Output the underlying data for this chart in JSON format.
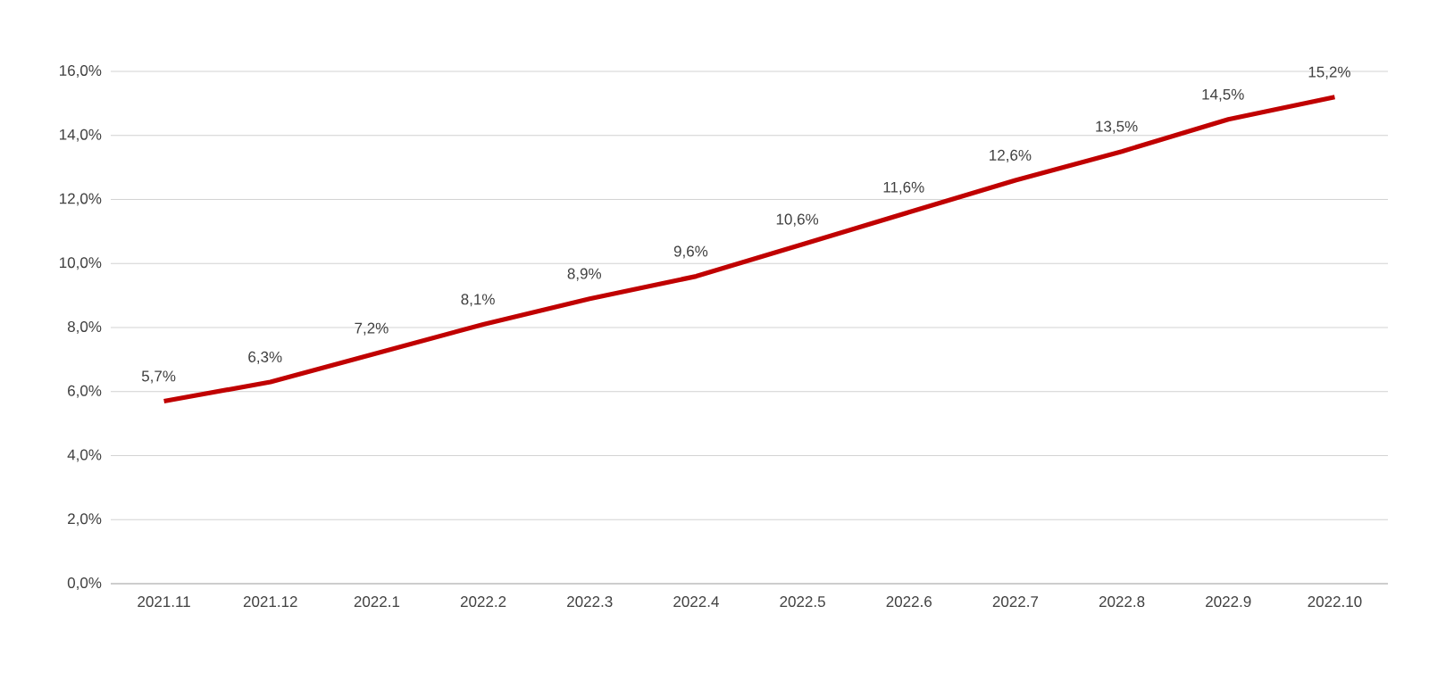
{
  "chart_data": {
    "type": "line",
    "categories": [
      "2021.11",
      "2021.12",
      "2022.1",
      "2022.2",
      "2022.3",
      "2022.4",
      "2022.5",
      "2022.6",
      "2022.7",
      "2022.8",
      "2022.9",
      "2022.10"
    ],
    "values": [
      5.7,
      6.3,
      7.2,
      8.1,
      8.9,
      9.6,
      10.6,
      11.6,
      12.6,
      13.5,
      14.5,
      15.2
    ],
    "value_labels": [
      "5,7%",
      "6,3%",
      "7,2%",
      "8,1%",
      "8,9%",
      "9,6%",
      "10,6%",
      "11,6%",
      "12,6%",
      "13,5%",
      "14,5%",
      "15,2%"
    ],
    "color": "#c00000",
    "ylim": [
      0,
      16
    ],
    "yticks": [
      {
        "value": 0,
        "label": "0,0%"
      },
      {
        "value": 2,
        "label": "2,0%"
      },
      {
        "value": 4,
        "label": "4,0%"
      },
      {
        "value": 6,
        "label": "6,0%"
      },
      {
        "value": 8,
        "label": "8,0%"
      },
      {
        "value": 10,
        "label": "10,0%"
      },
      {
        "value": 12,
        "label": "12,0%"
      },
      {
        "value": 14,
        "label": "14,0%"
      },
      {
        "value": 16,
        "label": "16,0%"
      }
    ],
    "grid": "y"
  }
}
